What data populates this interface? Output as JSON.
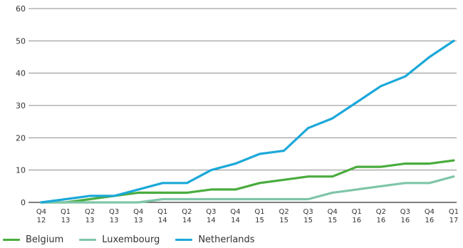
{
  "chart_data": {
    "type": "line",
    "title": "",
    "xlabel": "",
    "ylabel": "",
    "ylim": [
      0,
      60
    ],
    "yticks": [
      0,
      10,
      20,
      30,
      40,
      50,
      60
    ],
    "grid": "horizontal",
    "legend_position": "bottom-left",
    "categories": [
      [
        "Q4",
        "12"
      ],
      [
        "Q1",
        "13"
      ],
      [
        "Q2",
        "13"
      ],
      [
        "Q3",
        "13"
      ],
      [
        "Q4",
        "13"
      ],
      [
        "Q1",
        "14"
      ],
      [
        "Q2",
        "14"
      ],
      [
        "Q3",
        "14"
      ],
      [
        "Q4",
        "14"
      ],
      [
        "Q1",
        "15"
      ],
      [
        "Q2",
        "15"
      ],
      [
        "Q3",
        "15"
      ],
      [
        "Q4",
        "15"
      ],
      [
        "Q1",
        "16"
      ],
      [
        "Q2",
        "16"
      ],
      [
        "Q3",
        "16"
      ],
      [
        "Q4",
        "16"
      ],
      [
        "Q1",
        "17"
      ]
    ],
    "series": [
      {
        "name": "Belgium",
        "color": "#4aac3e",
        "values": [
          0,
          0,
          1,
          2,
          3,
          3,
          3,
          4,
          4,
          6,
          7,
          8,
          8,
          11,
          11,
          12,
          12,
          13
        ]
      },
      {
        "name": "Luxembourg",
        "color": "#7fc5a8",
        "values": [
          0,
          0,
          0,
          0,
          0,
          1,
          1,
          1,
          1,
          1,
          1,
          1,
          3,
          4,
          5,
          6,
          6,
          8
        ]
      },
      {
        "name": "Netherlands",
        "color": "#1ba8d8",
        "values": [
          0,
          1,
          2,
          2,
          4,
          6,
          6,
          10,
          12,
          15,
          16,
          23,
          26,
          31,
          36,
          39,
          45,
          50
        ]
      }
    ]
  }
}
